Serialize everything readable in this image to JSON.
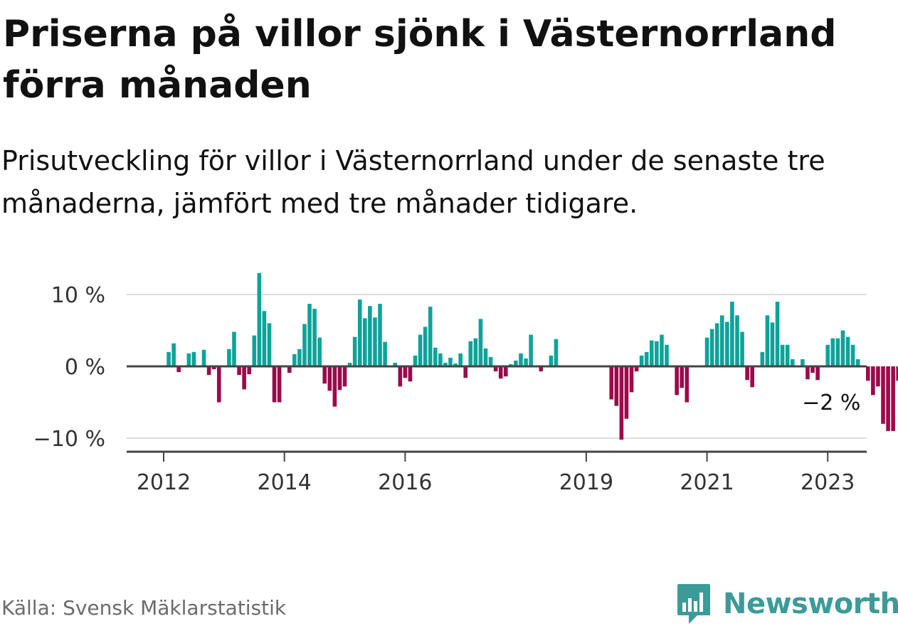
{
  "header": {
    "title": "Priserna på villor sjönk i Västernorrland förra månaden",
    "subtitle": "Prisutveckling för villor i Västernorrland under de senaste tre månaderna, jämfört med tre månader tidigare."
  },
  "footer": {
    "source": "Källa: Svensk Mäklarstatistik",
    "brand": "Newsworthy",
    "brand_icon": "bar-chart-logo-icon"
  },
  "colors": {
    "positive": "#0ea39a",
    "negative": "#9b0a4a",
    "zero_line": "#444444",
    "grid": "#dddddd",
    "brand": "#3c9b99"
  },
  "chart_data": {
    "type": "bar",
    "x_start": "2012-01",
    "frequency": "monthly",
    "ylim": [
      -12,
      14
    ],
    "y_ticks": [
      -10,
      0,
      10
    ],
    "y_tick_labels": [
      "−10 %",
      "0 %",
      "10 %"
    ],
    "x_tick_labels": [
      {
        "label": "2012",
        "date": "2012-01"
      },
      {
        "label": "2014",
        "date": "2014-01"
      },
      {
        "label": "2016",
        "date": "2016-01"
      },
      {
        "label": "2019",
        "date": "2019-01"
      },
      {
        "label": "2021",
        "date": "2021-01"
      },
      {
        "label": "2023",
        "date": "2023-01"
      }
    ],
    "grid": true,
    "annotation": {
      "label": "−2 %",
      "date": "2023-01"
    },
    "values": [
      0,
      2,
      3.2,
      -0.8,
      0,
      1.8,
      2,
      0,
      2.3,
      -1.2,
      -0.4,
      -5,
      0,
      2.4,
      4.8,
      -1.2,
      -3.2,
      -1.1,
      4.3,
      13,
      7.7,
      6,
      -5,
      -5,
      0,
      -0.9,
      1.7,
      2.4,
      5.9,
      8.7,
      8,
      4,
      -2.4,
      -3.4,
      -5.6,
      -3.3,
      -2.8,
      0.5,
      4.1,
      9.3,
      6.7,
      8.4,
      6.8,
      8.7,
      3.4,
      0,
      0.5,
      -2.8,
      -1.6,
      -2.1,
      1.5,
      4.4,
      5.5,
      8.3,
      2.6,
      1.8,
      0.5,
      1.2,
      0.4,
      1.8,
      -1.6,
      3.5,
      3.9,
      6.6,
      2.5,
      1.3,
      -0.7,
      -1.7,
      -1.4,
      0.3,
      0.8,
      1.8,
      1.1,
      4.4,
      0,
      -0.7,
      0,
      1.5,
      3.8,
      0,
      0,
      0,
      0,
      0,
      0,
      0,
      0,
      0,
      0,
      -4.6,
      -5.5,
      -10.2,
      -7.3,
      -3.6,
      -0.7,
      1.5,
      2,
      3.6,
      3.5,
      4.4,
      3,
      0,
      -4,
      -3,
      -5,
      0,
      0,
      0,
      4,
      5.2,
      6,
      7.1,
      6.2,
      9,
      7.1,
      4.8,
      -1.9,
      -2.9,
      0,
      2,
      7.1,
      6.1,
      9,
      3,
      3,
      1,
      0,
      1,
      -1.8,
      -0.9,
      -1.9,
      0,
      3,
      3.9,
      3.9,
      5,
      4.1,
      3,
      1,
      0,
      -2,
      -4,
      -2.8,
      -8,
      -9,
      -9,
      -2
    ]
  }
}
